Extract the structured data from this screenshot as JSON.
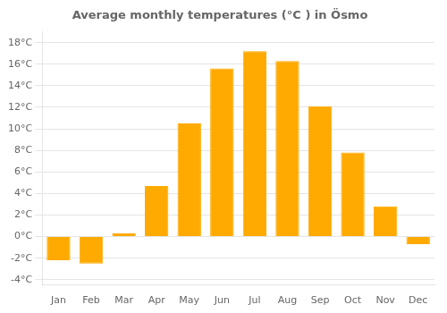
{
  "chart_data": {
    "type": "bar",
    "title": "Average monthly temperatures (°C ) in Ösmo",
    "categories": [
      "Jan",
      "Feb",
      "Mar",
      "Apr",
      "May",
      "Jun",
      "Jul",
      "Aug",
      "Sep",
      "Oct",
      "Nov",
      "Dec"
    ],
    "values": [
      -2.2,
      -2.5,
      0.3,
      4.7,
      10.5,
      15.6,
      17.2,
      16.3,
      12.1,
      7.8,
      2.8,
      -0.7
    ],
    "color": "#FFAA00",
    "ylim": [
      -4.5,
      19
    ],
    "yticks": [
      {
        "value": -4,
        "label": "-4°C"
      },
      {
        "value": -2,
        "label": "-2°C"
      },
      {
        "value": 0,
        "label": "0°C"
      },
      {
        "value": 2,
        "label": "2°C"
      },
      {
        "value": 4,
        "label": "4°C"
      },
      {
        "value": 6,
        "label": "6°C"
      },
      {
        "value": 8,
        "label": "8°C"
      },
      {
        "value": 10,
        "label": "10°C"
      },
      {
        "value": 12,
        "label": "12°C"
      },
      {
        "value": 14,
        "label": "14°C"
      },
      {
        "value": 16,
        "label": "16°C"
      },
      {
        "value": 18,
        "label": "18°C"
      }
    ],
    "grid": true
  }
}
